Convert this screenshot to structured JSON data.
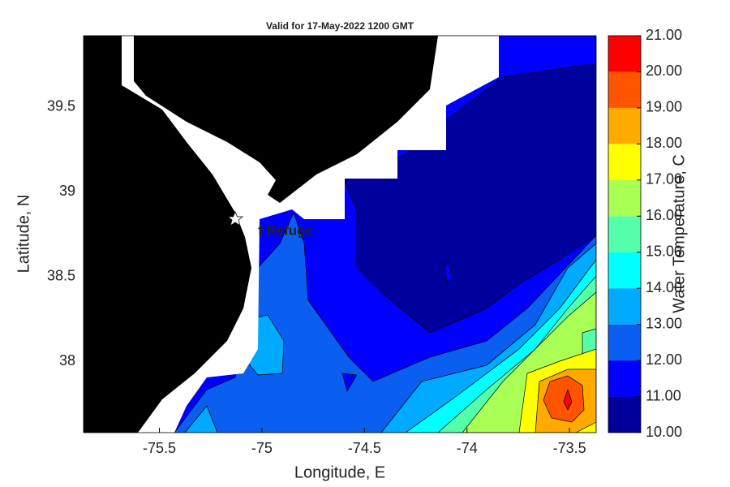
{
  "chart_data": {
    "type": "contour",
    "title": "Valid for 17-May-2022 1200 GMT",
    "x_label": "Longitude, E",
    "y_label": "Latitude, N",
    "colorbar_label": "Water Temperature, C",
    "annotation": "f Refuge",
    "xlim": [
      -75.87,
      -73.37
    ],
    "ylim": [
      37.58,
      39.92
    ],
    "xticks": [
      -75.5,
      -75,
      -74.5,
      -74,
      -73.5
    ],
    "yticks": [
      38,
      38.5,
      39,
      39.5
    ],
    "clim": [
      10,
      21
    ],
    "cticks": [
      {
        "value": 10,
        "label": "10.00"
      },
      {
        "value": 11,
        "label": "11.00"
      },
      {
        "value": 12,
        "label": "12.00"
      },
      {
        "value": 13,
        "label": "13.00"
      },
      {
        "value": 14,
        "label": "14.00"
      },
      {
        "value": 15,
        "label": "15.00"
      },
      {
        "value": 16,
        "label": "16.00"
      },
      {
        "value": 17,
        "label": "17.00"
      },
      {
        "value": 18,
        "label": "18.00"
      },
      {
        "value": 19,
        "label": "19.00"
      },
      {
        "value": 20,
        "label": "20.00"
      },
      {
        "value": 21,
        "label": "21.00"
      }
    ],
    "levels": [
      10,
      11,
      12,
      13,
      14,
      15,
      16,
      17,
      18,
      19,
      20
    ],
    "colors": [
      "#00009c",
      "#0000ff",
      "#0a5ff0",
      "#00aaff",
      "#00ffff",
      "#55ffaa",
      "#aaff55",
      "#ffff00",
      "#ffaa00",
      "#ff5500",
      "#ff0000"
    ]
  }
}
